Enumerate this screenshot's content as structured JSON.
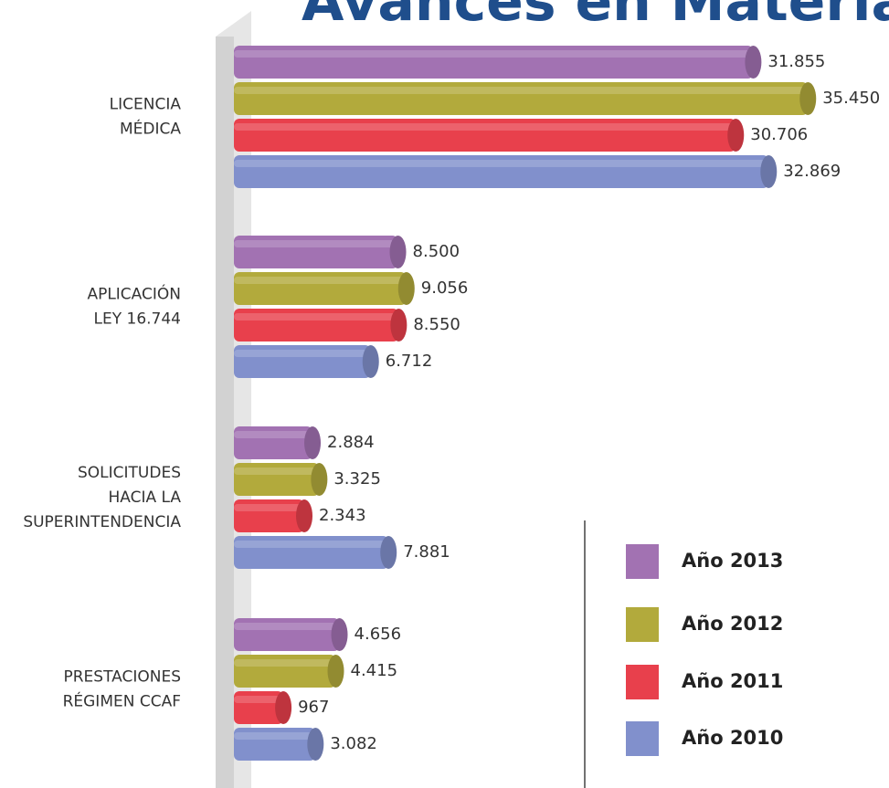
{
  "chart_data": {
    "type": "bar",
    "orientation": "horizontal",
    "title": "Avances en Materia",
    "categories": [
      [
        "LICENCIA",
        "MÉDICA"
      ],
      [
        "APLICACIÓN",
        "LEY 16.744"
      ],
      [
        "SOLICITUDES",
        "HACIA LA",
        "SUPERINTENDENCIA"
      ],
      [
        "PRESTACIONES",
        "RÉGIMEN CCAF"
      ]
    ],
    "series": [
      {
        "name": "Año 2013",
        "color": "#a272b2",
        "values": [
          31855,
          8500,
          2884,
          4656
        ],
        "value_labels": [
          "31.855",
          "8.500",
          "2.884",
          "4.656"
        ]
      },
      {
        "name": "Año 2012",
        "color": "#b2aa3c",
        "values": [
          35450,
          9056,
          3325,
          4415
        ],
        "value_labels": [
          "35.450",
          "9.056",
          "3.325",
          "4.415"
        ]
      },
      {
        "name": "Año 2011",
        "color": "#e8404c",
        "values": [
          30706,
          8550,
          2343,
          967
        ],
        "value_labels": [
          "30.706",
          "8.550",
          "2.343",
          "967"
        ]
      },
      {
        "name": "Año 2010",
        "color": "#8190cc",
        "values": [
          32869,
          6712,
          7881,
          3082
        ],
        "value_labels": [
          "32.869",
          "6.712",
          "7.881",
          "3.082"
        ]
      }
    ],
    "legend": "bottom-right"
  }
}
